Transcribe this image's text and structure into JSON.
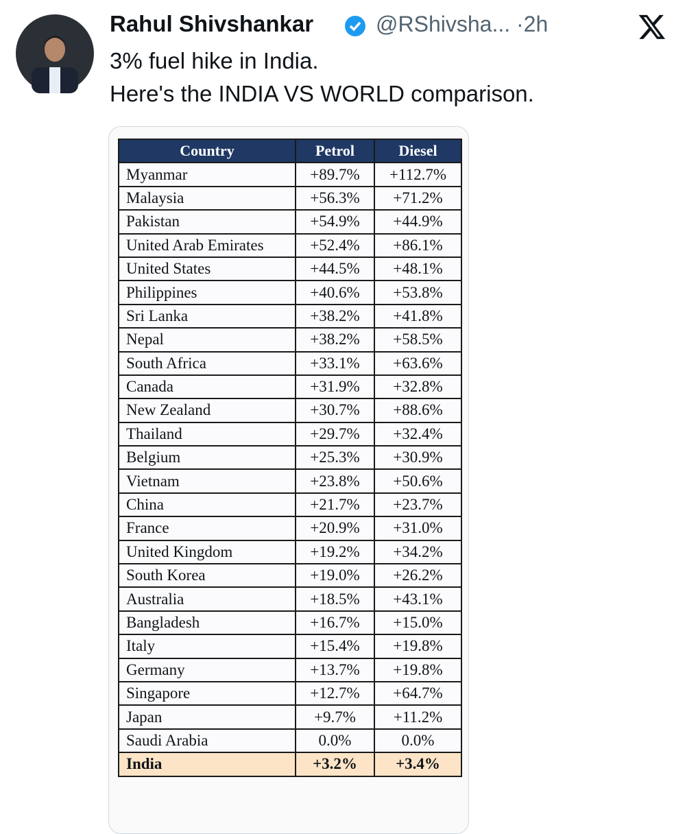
{
  "header": {
    "name": "Rahul Shivshankar",
    "handle": "@RShivsha...",
    "separator": "·",
    "time": "2h"
  },
  "text": [
    "3% fuel hike in India.",
    "Here's the INDIA VS WORLD comparison."
  ],
  "table": {
    "columns": [
      "Country",
      "Petrol",
      "Diesel"
    ],
    "rows": [
      [
        "Myanmar",
        "+89.7%",
        "+112.7%"
      ],
      [
        "Malaysia",
        "+56.3%",
        "+71.2%"
      ],
      [
        "Pakistan",
        "+54.9%",
        "+44.9%"
      ],
      [
        "United Arab Emirates",
        "+52.4%",
        "+86.1%"
      ],
      [
        "United States",
        "+44.5%",
        "+48.1%"
      ],
      [
        "Philippines",
        "+40.6%",
        "+53.8%"
      ],
      [
        "Sri Lanka",
        "+38.2%",
        "+41.8%"
      ],
      [
        "Nepal",
        "+38.2%",
        "+58.5%"
      ],
      [
        "South Africa",
        "+33.1%",
        "+63.6%"
      ],
      [
        "Canada",
        "+31.9%",
        "+32.8%"
      ],
      [
        "New Zealand",
        "+30.7%",
        "+88.6%"
      ],
      [
        "Thailand",
        "+29.7%",
        "+32.4%"
      ],
      [
        "Belgium",
        "+25.3%",
        "+30.9%"
      ],
      [
        "Vietnam",
        "+23.8%",
        "+50.6%"
      ],
      [
        "China",
        "+21.7%",
        "+23.7%"
      ],
      [
        "France",
        "+20.9%",
        "+31.0%"
      ],
      [
        "United Kingdom",
        "+19.2%",
        "+34.2%"
      ],
      [
        "South Korea",
        "+19.0%",
        "+26.2%"
      ],
      [
        "Australia",
        "+18.5%",
        "+43.1%"
      ],
      [
        "Bangladesh",
        "+16.7%",
        "+15.0%"
      ],
      [
        "Italy",
        "+15.4%",
        "+19.8%"
      ],
      [
        "Germany",
        "+13.7%",
        "+19.8%"
      ],
      [
        "Singapore",
        "+12.7%",
        "+64.7%"
      ],
      [
        "Japan",
        "+9.7%",
        "+11.2%"
      ],
      [
        "Saudi Arabia",
        "0.0%",
        "0.0%"
      ],
      [
        "India",
        "+3.2%",
        "+3.4%"
      ]
    ]
  }
}
